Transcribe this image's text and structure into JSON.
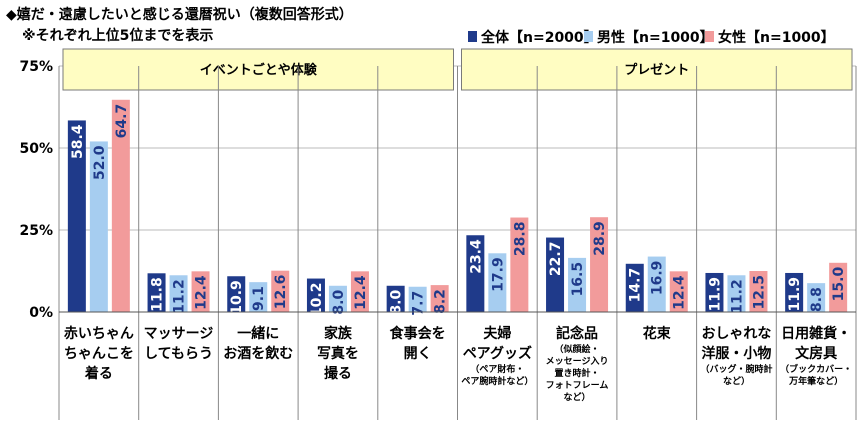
{
  "chart_data": {
    "type": "bar",
    "title": "◆嬉だ・遠慮したいと感じる還暦祝い（複数回答形式）",
    "subtitle": "※それぞれ上位5位までを表示",
    "ylim": [
      0,
      75
    ],
    "yticks": [
      "0%",
      "25%",
      "50%",
      "75%"
    ],
    "groups": [
      {
        "label": "イベントごとや体験",
        "from": 0,
        "to": 4
      },
      {
        "label": "プレゼント",
        "from": 5,
        "to": 9
      }
    ],
    "categories": [
      {
        "lines": [
          "赤いちゃん",
          "ちゃんこを",
          "着る"
        ],
        "sub": []
      },
      {
        "lines": [
          "マッサージ",
          "してもらう"
        ],
        "sub": []
      },
      {
        "lines": [
          "一緒に",
          "お酒を飲む"
        ],
        "sub": []
      },
      {
        "lines": [
          "家族",
          "写真を",
          "撮る"
        ],
        "sub": []
      },
      {
        "lines": [
          "食事会を",
          "開く"
        ],
        "sub": []
      },
      {
        "lines": [
          "夫婦",
          "ペアグッズ"
        ],
        "sub": [
          "（ペア財布・",
          "ペア腕時計など）"
        ]
      },
      {
        "lines": [
          "記念品"
        ],
        "sub": [
          "（似顔絵・",
          "メッセージ入り",
          "置き時計・",
          "フォトフレーム",
          "など）"
        ]
      },
      {
        "lines": [
          "花束"
        ],
        "sub": []
      },
      {
        "lines": [
          "おしゃれな",
          "洋服・小物"
        ],
        "sub": [
          "（バッグ・腕時計",
          "など）"
        ]
      },
      {
        "lines": [
          "日用雑貨・",
          "文房具"
        ],
        "sub": [
          "（ブックカバー・",
          "万年筆など）"
        ]
      }
    ],
    "series": [
      {
        "name": "全体【n=2000】",
        "color": "#1f3a8a",
        "label_color": "#ffffff",
        "values": [
          58.4,
          11.8,
          10.9,
          10.2,
          8.0,
          23.4,
          22.7,
          14.7,
          11.9,
          11.9
        ]
      },
      {
        "name": "男性【n=1000】",
        "color": "#a6cdf0",
        "label_color": "#1f3a8a",
        "values": [
          52.0,
          11.2,
          9.1,
          8.0,
          7.7,
          17.9,
          16.5,
          16.9,
          11.2,
          8.8
        ]
      },
      {
        "name": "女性【n=1000】",
        "color": "#f29b9b",
        "label_color": "#1f3a8a",
        "values": [
          64.7,
          12.4,
          12.6,
          12.4,
          8.2,
          28.8,
          28.9,
          12.4,
          12.5,
          15.0
        ]
      }
    ],
    "value_labels": [
      [
        "58.4",
        "11.8",
        "10.9",
        "10.2",
        "8.0",
        "23.4",
        "22.7",
        "14.7",
        "11.9",
        "11.9"
      ],
      [
        "52.0",
        "11.2",
        "9.1",
        "8.0",
        "7.7",
        "17.9",
        "16.5",
        "16.9",
        "11.2",
        "8.8"
      ],
      [
        "64.7",
        "12.4",
        "12.6",
        "12.4",
        "8.2",
        "28.8",
        "28.9",
        "12.4",
        "12.5",
        "15.0"
      ]
    ],
    "colors": {
      "group_fill": "#fffdc2",
      "group_stroke": "#7a7a7a",
      "grid": "#bbbbbb"
    }
  }
}
